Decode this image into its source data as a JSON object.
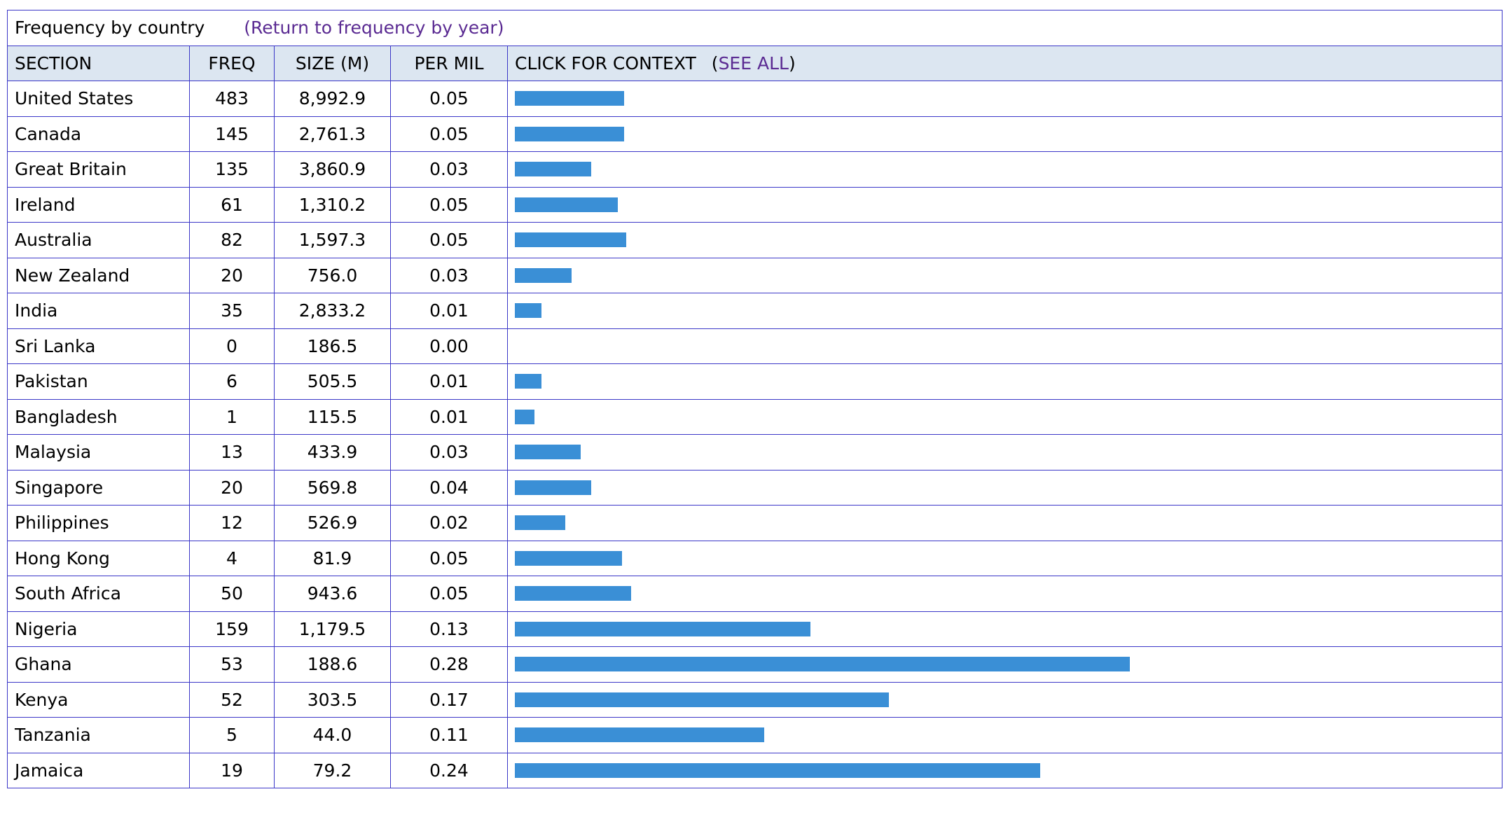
{
  "title": "Frequency by country",
  "return_link": "(Return to frequency by year)",
  "header": {
    "section": "SECTION",
    "freq": "FREQ",
    "size": "SIZE (M)",
    "per_mil": "PER MIL",
    "context": "CLICK FOR CONTEXT",
    "see_all_open": "(",
    "see_all": "SEE ALL",
    "see_all_close": ")"
  },
  "bar_color": "#3a8fd6",
  "header_bg": "#dce6f1",
  "border_color": "#3b37c8",
  "link_color": "#5a2a92",
  "rows": [
    {
      "section": "United States",
      "freq": "483",
      "size": "8,992.9",
      "per_mil": "0.05",
      "bar": 0.05
    },
    {
      "section": "Canada",
      "freq": "145",
      "size": "2,761.3",
      "per_mil": "0.05",
      "bar": 0.05
    },
    {
      "section": "Great Britain",
      "freq": "135",
      "size": "3,860.9",
      "per_mil": "0.03",
      "bar": 0.035
    },
    {
      "section": "Ireland",
      "freq": "61",
      "size": "1,310.2",
      "per_mil": "0.05",
      "bar": 0.047
    },
    {
      "section": "Australia",
      "freq": "82",
      "size": "1,597.3",
      "per_mil": "0.05",
      "bar": 0.051
    },
    {
      "section": "New Zealand",
      "freq": "20",
      "size": "756.0",
      "per_mil": "0.03",
      "bar": 0.026
    },
    {
      "section": "India",
      "freq": "35",
      "size": "2,833.2",
      "per_mil": "0.01",
      "bar": 0.012
    },
    {
      "section": "Sri Lanka",
      "freq": "0",
      "size": "186.5",
      "per_mil": "0.00",
      "bar": 0
    },
    {
      "section": "Pakistan",
      "freq": "6",
      "size": "505.5",
      "per_mil": "0.01",
      "bar": 0.012
    },
    {
      "section": "Bangladesh",
      "freq": "1",
      "size": "115.5",
      "per_mil": "0.01",
      "bar": 0.009
    },
    {
      "section": "Malaysia",
      "freq": "13",
      "size": "433.9",
      "per_mil": "0.03",
      "bar": 0.03
    },
    {
      "section": "Singapore",
      "freq": "20",
      "size": "569.8",
      "per_mil": "0.04",
      "bar": 0.035
    },
    {
      "section": "Philippines",
      "freq": "12",
      "size": "526.9",
      "per_mil": "0.02",
      "bar": 0.023
    },
    {
      "section": "Hong Kong",
      "freq": "4",
      "size": "81.9",
      "per_mil": "0.05",
      "bar": 0.049
    },
    {
      "section": "South Africa",
      "freq": "50",
      "size": "943.6",
      "per_mil": "0.05",
      "bar": 0.053
    },
    {
      "section": "Nigeria",
      "freq": "159",
      "size": "1,179.5",
      "per_mil": "0.13",
      "bar": 0.135
    },
    {
      "section": "Ghana",
      "freq": "53",
      "size": "188.6",
      "per_mil": "0.28",
      "bar": 0.281
    },
    {
      "section": "Kenya",
      "freq": "52",
      "size": "303.5",
      "per_mil": "0.17",
      "bar": 0.171
    },
    {
      "section": "Tanzania",
      "freq": "5",
      "size": "44.0",
      "per_mil": "0.11",
      "bar": 0.114
    },
    {
      "section": "Jamaica",
      "freq": "19",
      "size": "79.2",
      "per_mil": "0.24",
      "bar": 0.24
    }
  ]
}
